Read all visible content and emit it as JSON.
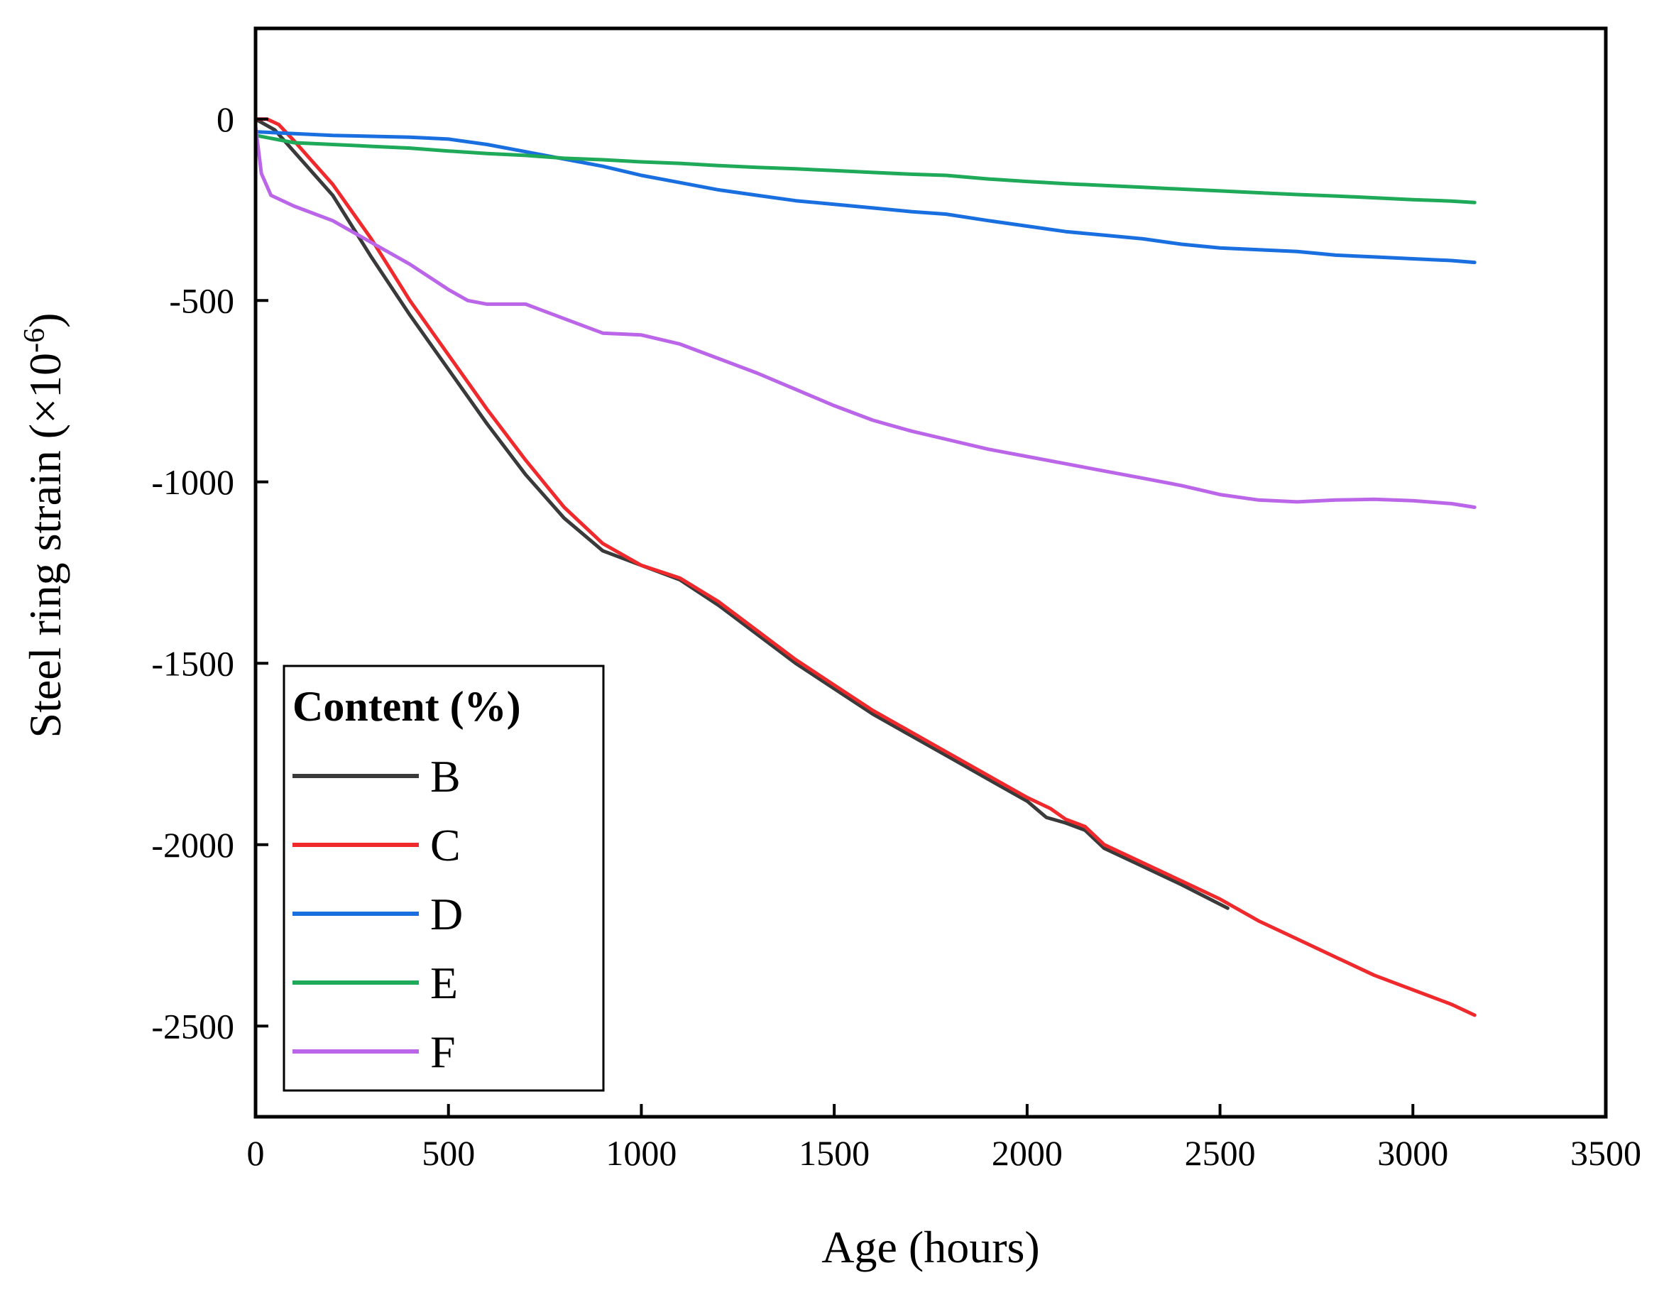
{
  "chart_data": {
    "type": "line",
    "title": "",
    "xlabel": "Age (hours)",
    "ylabel_main": "Steel ring strain (×10",
    "ylabel_exp": "-6",
    "ylabel_close": ")",
    "xlim": [
      0,
      3500
    ],
    "ylim": [
      -2750,
      250
    ],
    "x_ticks": [
      0,
      500,
      1000,
      1500,
      2000,
      2500,
      3000,
      3500
    ],
    "y_ticks": [
      0,
      -500,
      -1000,
      -1500,
      -2000,
      -2500
    ],
    "x_tick_labels": [
      "0",
      "500",
      "1000",
      "1500",
      "2000",
      "2500",
      "3000",
      "3500"
    ],
    "y_tick_labels": [
      "0",
      "-500",
      "-1000",
      "-1500",
      "-2000",
      "-2500"
    ],
    "grid": false,
    "legend": {
      "title": "Content (%)",
      "position": "bottom-left"
    },
    "series": [
      {
        "name": "B",
        "color": "#3a3a3a",
        "points": [
          [
            0,
            0
          ],
          [
            50,
            -30
          ],
          [
            100,
            -90
          ],
          [
            200,
            -210
          ],
          [
            300,
            -380
          ],
          [
            400,
            -540
          ],
          [
            500,
            -690
          ],
          [
            600,
            -840
          ],
          [
            700,
            -980
          ],
          [
            800,
            -1100
          ],
          [
            900,
            -1190
          ],
          [
            1000,
            -1230
          ],
          [
            1100,
            -1270
          ],
          [
            1200,
            -1340
          ],
          [
            1300,
            -1420
          ],
          [
            1400,
            -1500
          ],
          [
            1500,
            -1570
          ],
          [
            1600,
            -1640
          ],
          [
            1700,
            -1700
          ],
          [
            1800,
            -1760
          ],
          [
            1900,
            -1820
          ],
          [
            2000,
            -1880
          ],
          [
            2050,
            -1925
          ],
          [
            2100,
            -1940
          ],
          [
            2150,
            -1960
          ],
          [
            2200,
            -2010
          ],
          [
            2300,
            -2060
          ],
          [
            2400,
            -2110
          ],
          [
            2520,
            -2175
          ]
        ]
      },
      {
        "name": "C",
        "color": "#f0292d",
        "points": [
          [
            0,
            0
          ],
          [
            30,
            0
          ],
          [
            60,
            -15
          ],
          [
            100,
            -60
          ],
          [
            200,
            -180
          ],
          [
            300,
            -330
          ],
          [
            400,
            -500
          ],
          [
            500,
            -650
          ],
          [
            600,
            -800
          ],
          [
            700,
            -940
          ],
          [
            800,
            -1070
          ],
          [
            900,
            -1170
          ],
          [
            1000,
            -1230
          ],
          [
            1100,
            -1265
          ],
          [
            1200,
            -1330
          ],
          [
            1300,
            -1410
          ],
          [
            1400,
            -1490
          ],
          [
            1500,
            -1560
          ],
          [
            1600,
            -1630
          ],
          [
            1700,
            -1690
          ],
          [
            1800,
            -1750
          ],
          [
            1900,
            -1810
          ],
          [
            2000,
            -1870
          ],
          [
            2060,
            -1900
          ],
          [
            2100,
            -1930
          ],
          [
            2150,
            -1950
          ],
          [
            2200,
            -2000
          ],
          [
            2300,
            -2050
          ],
          [
            2400,
            -2100
          ],
          [
            2500,
            -2150
          ],
          [
            2600,
            -2210
          ],
          [
            2700,
            -2260
          ],
          [
            2800,
            -2310
          ],
          [
            2900,
            -2360
          ],
          [
            3000,
            -2400
          ],
          [
            3100,
            -2440
          ],
          [
            3160,
            -2470
          ]
        ]
      },
      {
        "name": "D",
        "color": "#1a6fe0",
        "points": [
          [
            0,
            -35
          ],
          [
            200,
            -45
          ],
          [
            400,
            -50
          ],
          [
            500,
            -55
          ],
          [
            600,
            -70
          ],
          [
            700,
            -90
          ],
          [
            800,
            -110
          ],
          [
            900,
            -130
          ],
          [
            1000,
            -155
          ],
          [
            1100,
            -175
          ],
          [
            1200,
            -195
          ],
          [
            1300,
            -210
          ],
          [
            1400,
            -225
          ],
          [
            1500,
            -235
          ],
          [
            1600,
            -245
          ],
          [
            1700,
            -255
          ],
          [
            1790,
            -262
          ],
          [
            1900,
            -280
          ],
          [
            2000,
            -295
          ],
          [
            2100,
            -310
          ],
          [
            2200,
            -320
          ],
          [
            2300,
            -330
          ],
          [
            2400,
            -345
          ],
          [
            2500,
            -355
          ],
          [
            2600,
            -360
          ],
          [
            2700,
            -365
          ],
          [
            2800,
            -375
          ],
          [
            2900,
            -380
          ],
          [
            3000,
            -385
          ],
          [
            3100,
            -390
          ],
          [
            3160,
            -395
          ]
        ]
      },
      {
        "name": "E",
        "color": "#1faa5a",
        "points": [
          [
            0,
            -45
          ],
          [
            100,
            -65
          ],
          [
            200,
            -70
          ],
          [
            300,
            -75
          ],
          [
            400,
            -80
          ],
          [
            500,
            -88
          ],
          [
            600,
            -95
          ],
          [
            700,
            -100
          ],
          [
            800,
            -108
          ],
          [
            900,
            -112
          ],
          [
            1000,
            -118
          ],
          [
            1100,
            -122
          ],
          [
            1200,
            -128
          ],
          [
            1300,
            -133
          ],
          [
            1400,
            -137
          ],
          [
            1500,
            -142
          ],
          [
            1600,
            -147
          ],
          [
            1700,
            -152
          ],
          [
            1790,
            -155
          ],
          [
            1900,
            -165
          ],
          [
            2000,
            -172
          ],
          [
            2100,
            -178
          ],
          [
            2200,
            -183
          ],
          [
            2300,
            -188
          ],
          [
            2400,
            -193
          ],
          [
            2500,
            -198
          ],
          [
            2600,
            -203
          ],
          [
            2700,
            -208
          ],
          [
            2800,
            -212
          ],
          [
            2900,
            -217
          ],
          [
            3000,
            -222
          ],
          [
            3100,
            -226
          ],
          [
            3160,
            -230
          ]
        ]
      },
      {
        "name": "F",
        "color": "#bb66e8",
        "points": [
          [
            0,
            -20
          ],
          [
            15,
            -150
          ],
          [
            40,
            -210
          ],
          [
            100,
            -240
          ],
          [
            200,
            -280
          ],
          [
            300,
            -340
          ],
          [
            400,
            -400
          ],
          [
            500,
            -470
          ],
          [
            550,
            -500
          ],
          [
            600,
            -510
          ],
          [
            700,
            -510
          ],
          [
            800,
            -550
          ],
          [
            900,
            -590
          ],
          [
            1000,
            -595
          ],
          [
            1100,
            -620
          ],
          [
            1200,
            -660
          ],
          [
            1300,
            -700
          ],
          [
            1400,
            -745
          ],
          [
            1500,
            -790
          ],
          [
            1600,
            -830
          ],
          [
            1700,
            -860
          ],
          [
            1800,
            -885
          ],
          [
            1900,
            -910
          ],
          [
            2000,
            -930
          ],
          [
            2100,
            -950
          ],
          [
            2200,
            -970
          ],
          [
            2300,
            -990
          ],
          [
            2400,
            -1010
          ],
          [
            2500,
            -1035
          ],
          [
            2600,
            -1050
          ],
          [
            2700,
            -1055
          ],
          [
            2800,
            -1050
          ],
          [
            2900,
            -1048
          ],
          [
            3000,
            -1052
          ],
          [
            3100,
            -1060
          ],
          [
            3160,
            -1070
          ]
        ]
      }
    ]
  }
}
